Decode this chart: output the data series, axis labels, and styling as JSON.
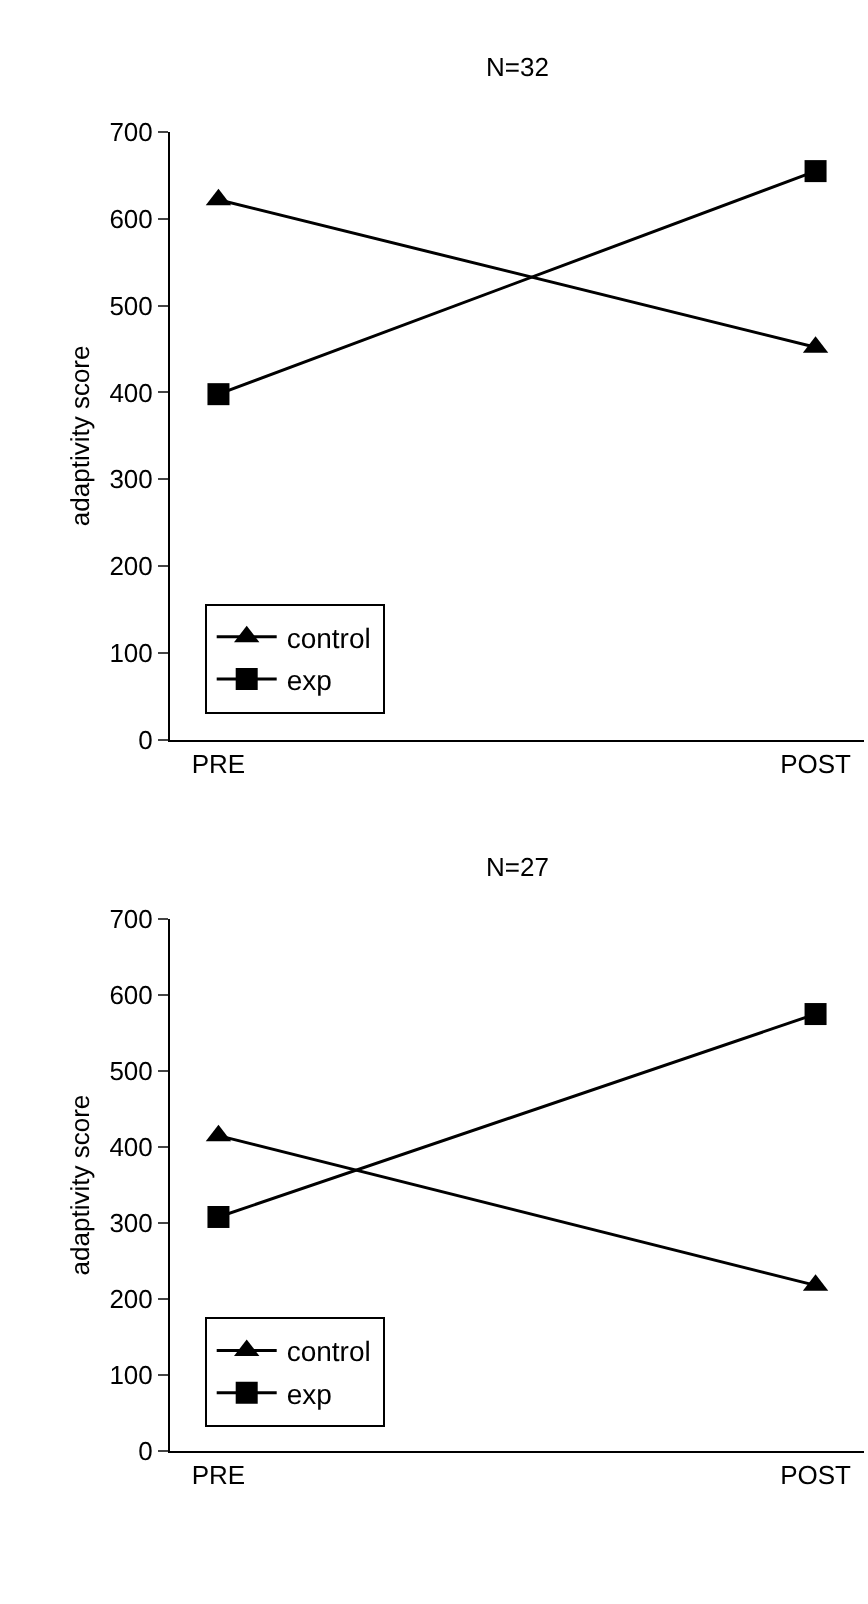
{
  "chart_data": [
    {
      "type": "line",
      "title": "N=32",
      "ylabel": "adaptivity score",
      "categories": [
        "PRE",
        "POST"
      ],
      "ylim": [
        0,
        700
      ],
      "yticks": [
        0,
        100,
        200,
        300,
        400,
        500,
        600,
        700
      ],
      "legend": "bottom left",
      "line_style": "solid",
      "series": [
        {
          "name": "control",
          "color": "#000000",
          "marker": "triangle",
          "values": [
            622,
            452
          ]
        },
        {
          "name": "exp",
          "color": "#000000",
          "marker": "square",
          "values": [
            398,
            655
          ]
        }
      ]
    },
    {
      "type": "line",
      "title": "N=27",
      "ylabel": "adaptivity score",
      "categories": [
        "PRE",
        "POST"
      ],
      "ylim": [
        0,
        700
      ],
      "yticks": [
        0,
        100,
        200,
        300,
        400,
        500,
        600,
        700
      ],
      "legend": "bottom left",
      "line_style": "solid",
      "series": [
        {
          "name": "control",
          "color": "#000000",
          "marker": "triangle",
          "values": [
            415,
            218
          ]
        },
        {
          "name": "exp",
          "color": "#000000",
          "marker": "square",
          "values": [
            308,
            575
          ]
        }
      ]
    }
  ]
}
